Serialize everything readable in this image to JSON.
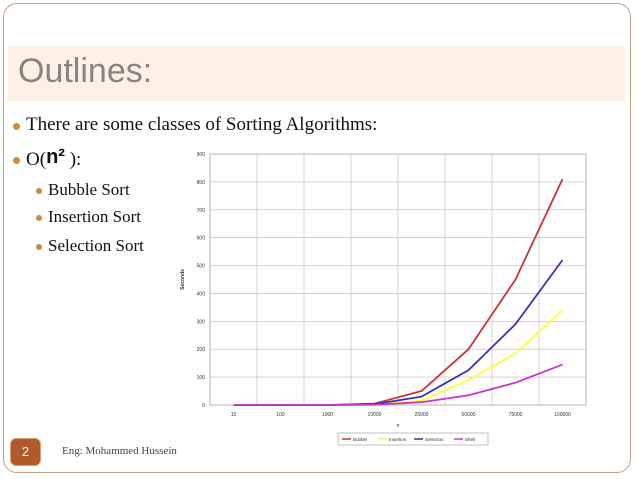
{
  "slide": {
    "title": "Outlines:",
    "bullets": {
      "b1": "There are some classes of Sorting Algorithms:",
      "b2_prefix": "O(",
      "b2_power": "n²",
      "b2_suffix": " ):",
      "sub": [
        "Bubble Sort",
        "Insertion Sort",
        "Selection Sort"
      ]
    },
    "footer": {
      "page_number": "2",
      "author": "Eng: Mohammed Hussein"
    }
  },
  "colors": {
    "accent": "#b05a2c",
    "bullet_dot": "#c98e3a",
    "title_bar": "#fdf1e6"
  },
  "chart_data": {
    "type": "line",
    "categories": [
      "10",
      "100",
      "1000",
      "10000",
      "25000",
      "50000",
      "75000",
      "100000"
    ],
    "series": [
      {
        "name": "Bubble",
        "color": "#cc3333",
        "values": [
          0,
          0,
          0,
          5,
          50,
          200,
          450,
          810
        ]
      },
      {
        "name": "Insertion",
        "color": "#ffff33",
        "values": [
          0,
          0,
          0,
          2,
          15,
          90,
          185,
          340
        ]
      },
      {
        "name": "Selection",
        "color": "#3333bb",
        "values": [
          0,
          0,
          0,
          3,
          30,
          125,
          290,
          520
        ]
      },
      {
        "name": "Shell",
        "color": "#cc33cc",
        "values": [
          0,
          0,
          0,
          1,
          10,
          35,
          80,
          145
        ]
      }
    ],
    "xlabel": "n",
    "ylabel": "Seconds",
    "ylim": [
      0,
      900
    ],
    "yticks": [
      "0",
      "100",
      "200",
      "300",
      "400",
      "500",
      "600",
      "700",
      "800",
      "900"
    ],
    "grid": true,
    "legend": "bottom"
  }
}
